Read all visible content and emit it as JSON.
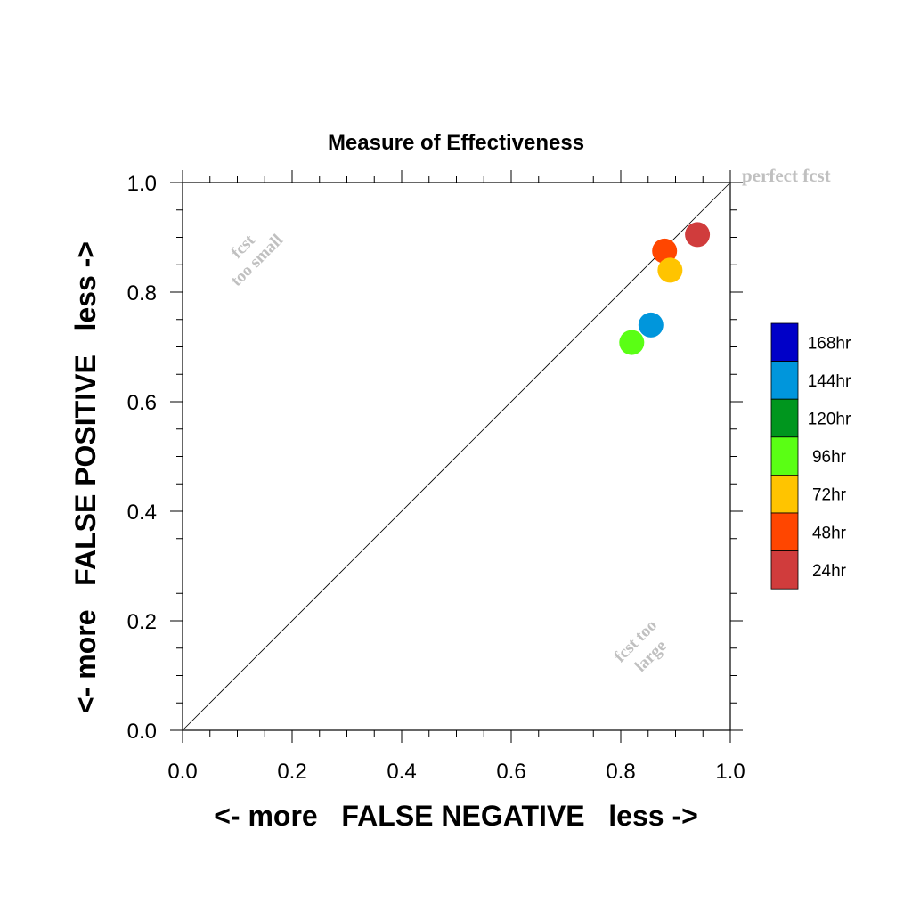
{
  "chart_data": {
    "type": "scatter",
    "title": "Measure of Effectiveness",
    "xlabel": "<- more   FALSE NEGATIVE   less ->",
    "ylabel": "<- more   FALSE POSITIVE   less ->",
    "xlim": [
      0,
      1
    ],
    "ylim": [
      0,
      1
    ],
    "xticks": [
      "0.0",
      "0.2",
      "0.4",
      "0.6",
      "0.8",
      "1.0"
    ],
    "yticks": [
      "0.0",
      "0.2",
      "0.4",
      "0.6",
      "0.8",
      "1.0"
    ],
    "grid": false,
    "reference_line": "y = x",
    "annotations": {
      "perfect": "perfect fcst",
      "small_line1": "fcst",
      "small_line2": "too small",
      "large_line1": "fcst too",
      "large_line2": "large"
    },
    "legend": {
      "placement": "right",
      "entries": [
        {
          "label": "168hr",
          "color": "#0000c8"
        },
        {
          "label": "144hr",
          "color": "#0096dc"
        },
        {
          "label": "120hr",
          "color": "#00961e"
        },
        {
          "label": "96hr",
          "color": "#5aff14"
        },
        {
          "label": "72hr",
          "color": "#ffc400"
        },
        {
          "label": "48hr",
          "color": "#ff4600"
        },
        {
          "label": "24hr",
          "color": "#d03c3c"
        }
      ]
    },
    "series": [
      {
        "label": "24hr",
        "color": "#d03c3c",
        "x": 0.94,
        "y": 0.905
      },
      {
        "label": "48hr",
        "color": "#ff4600",
        "x": 0.88,
        "y": 0.875
      },
      {
        "label": "72hr",
        "color": "#ffc400",
        "x": 0.89,
        "y": 0.84
      },
      {
        "label": "96hr",
        "color": "#5aff14",
        "x": 0.82,
        "y": 0.708
      },
      {
        "label": "144hr",
        "color": "#0096dc",
        "x": 0.855,
        "y": 0.74
      }
    ]
  }
}
